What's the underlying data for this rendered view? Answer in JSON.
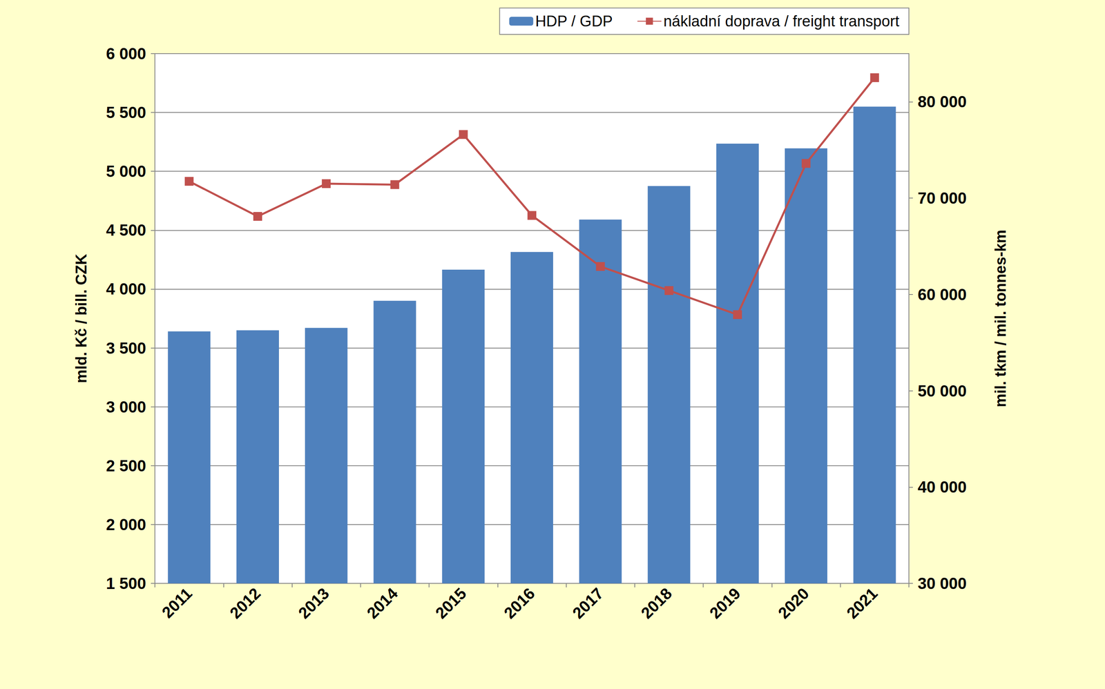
{
  "chart_data": {
    "type": "bar",
    "categories": [
      "2011",
      "2012",
      "2013",
      "2014",
      "2015",
      "2016",
      "2017",
      "2018",
      "2019",
      "2020",
      "2021"
    ],
    "series": [
      {
        "name": "HDP / GDP",
        "type": "bar",
        "color": "#4F81BD",
        "values": [
          3640,
          3650,
          3670,
          3900,
          4165,
          4315,
          4590,
          4875,
          5235,
          5195,
          5550
        ]
      },
      {
        "name": "nákladní doprava / freight transport",
        "type": "line",
        "axis": "y2",
        "color": "#C0504D",
        "marker": "square",
        "values": [
          71740,
          68100,
          71500,
          71400,
          76600,
          68200,
          62900,
          60400,
          57900,
          73600,
          82500
        ]
      }
    ],
    "y_label": "mld. Kč / bill. CZK",
    "y2_label": "mil. tkm / mil. tonnes-km",
    "ylim": [
      1500,
      6000
    ],
    "yticks": [
      {
        "value": 1500,
        "label": "1 500"
      },
      {
        "value": 2000,
        "label": "2 000"
      },
      {
        "value": 2500,
        "label": "2 500"
      },
      {
        "value": 3000,
        "label": "3 000"
      },
      {
        "value": 3500,
        "label": "3 500"
      },
      {
        "value": 4000,
        "label": "4 000"
      },
      {
        "value": 4500,
        "label": "4 500"
      },
      {
        "value": 5000,
        "label": "5 000"
      },
      {
        "value": 5500,
        "label": "5 500"
      },
      {
        "value": 6000,
        "label": "6 000"
      }
    ],
    "y2lim": [
      30000,
      85000
    ],
    "y2ticks": [
      {
        "value": 30000,
        "label": "30 000"
      },
      {
        "value": 40000,
        "label": "40 000"
      },
      {
        "value": 50000,
        "label": "50 000"
      },
      {
        "value": 60000,
        "label": "60 000"
      },
      {
        "value": 70000,
        "label": "70 000"
      },
      {
        "value": 80000,
        "label": "80 000"
      }
    ],
    "grid": true,
    "legend": "upper right"
  }
}
